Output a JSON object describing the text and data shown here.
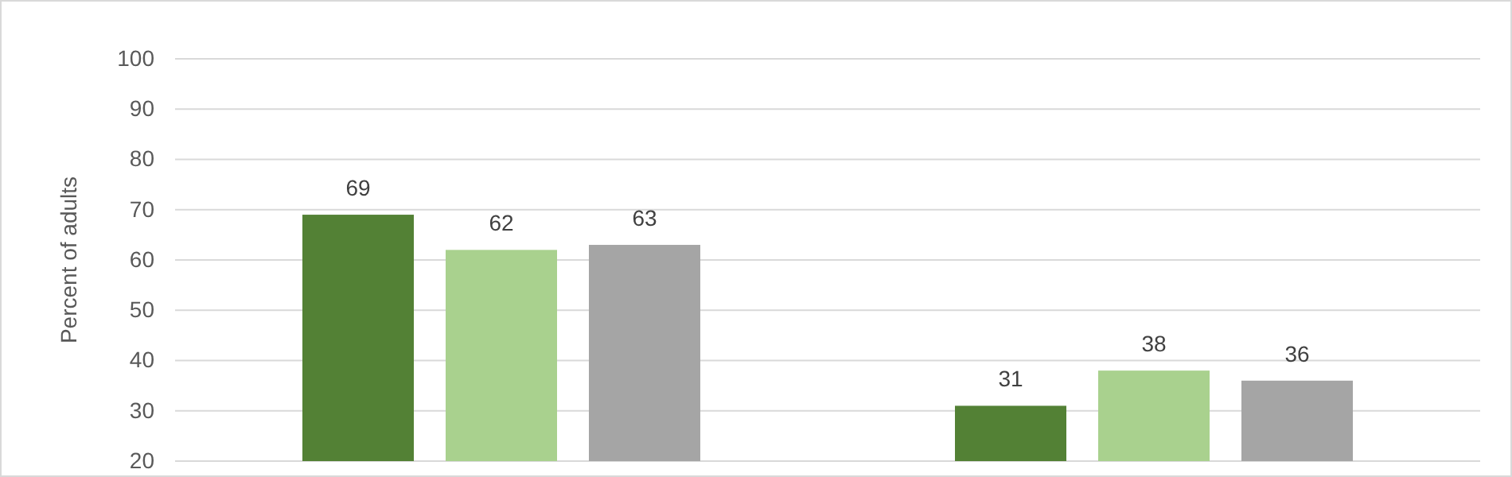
{
  "chart_data": {
    "type": "bar",
    "ylabel": "Percent of adults",
    "categories": [
      null,
      null
    ],
    "series": [
      {
        "color": "#538135",
        "values": [
          69,
          31
        ]
      },
      {
        "color": "#a9d18e",
        "values": [
          62,
          38
        ]
      },
      {
        "color": "#a5a5a5",
        "values": [
          63,
          36
        ]
      }
    ],
    "ylim": [
      20,
      100
    ],
    "yticks": [
      20,
      30,
      40,
      50,
      60,
      70,
      80,
      90,
      100
    ],
    "grid": "y",
    "data_labels": true
  }
}
